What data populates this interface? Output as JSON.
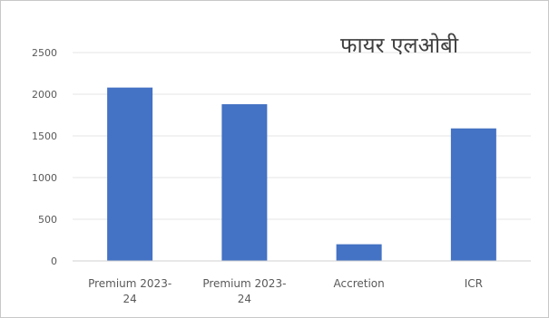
{
  "chart_data": {
    "type": "bar",
    "title": "फायर एलओबी",
    "categories": [
      "Premium 2023-24",
      "Premium 2023-24",
      "Accretion",
      "ICR"
    ],
    "values": [
      2080,
      1880,
      200,
      1590
    ],
    "ylim": [
      0,
      2500
    ],
    "yticks": [
      "0",
      "500",
      "1000",
      "1500",
      "2000",
      "2500"
    ],
    "grid": true,
    "legend": "none",
    "colors": {
      "bar": "#4472c4",
      "grid": "#e6e6e6",
      "axis": "#d0d0d0"
    }
  }
}
